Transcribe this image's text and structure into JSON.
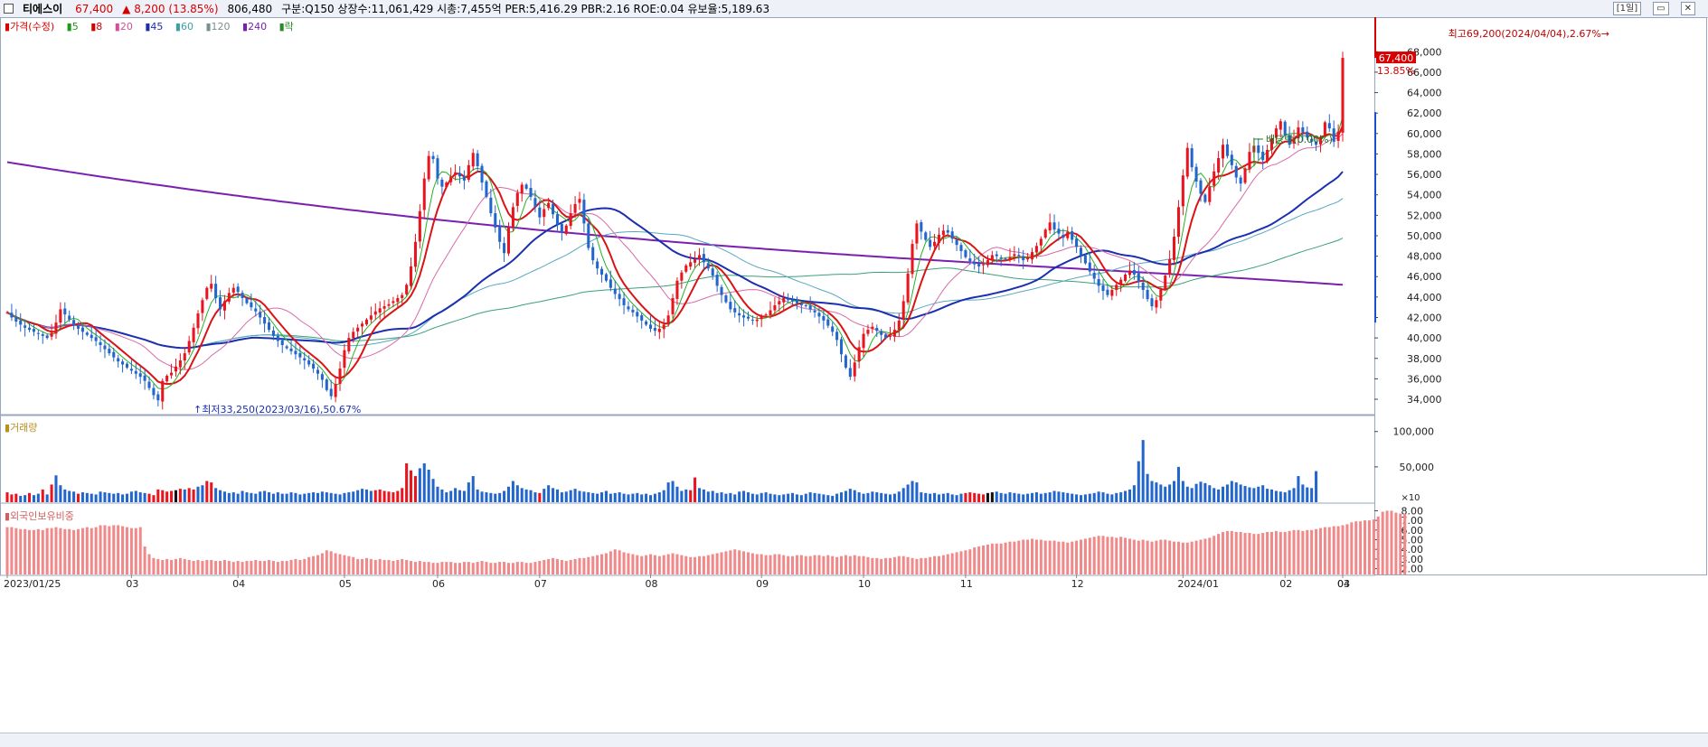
{
  "header": {
    "stock_name": "티에스이",
    "price": "67,400",
    "change": "▲ 8,200 (13.85%)",
    "volume": "806,480",
    "info": "구분:Q150  상장수:11,061,429  시총:7,455억  PER:5,416.29  PBR:2.16  ROE:0.04  유보율:5,189.63",
    "period_button": "[1일]",
    "win_min": "▭",
    "win_close": "✕"
  },
  "legend": {
    "price": "가격(수정)",
    "ma5": "5",
    "ma8": "8",
    "ma20": "20",
    "ma45": "45",
    "ma60": "60",
    "ma120": "120",
    "ma240": "240",
    "drop": "락",
    "volume": "거래량",
    "foreign": "외국인보유비중"
  },
  "colors": {
    "up": "#e8141e",
    "down": "#2266cc",
    "ma5": "#28b028",
    "ma8": "#d81414",
    "ma20": "#d86aa8",
    "ma45": "#1b2fb0",
    "ma60": "#58a8c0",
    "ma120": "#3aa07a",
    "ma240": "#7a20b0",
    "foreign": "#f08a8a"
  },
  "chart_data": {
    "type": "candlestick",
    "price_axis": {
      "ticks": [
        "34,000",
        "36,000",
        "38,000",
        "40,000",
        "42,000",
        "44,000",
        "46,000",
        "48,000",
        "50,000",
        "52,000",
        "54,000",
        "56,000",
        "58,000",
        "60,000",
        "62,000",
        "64,000",
        "66,000",
        "68,000"
      ],
      "ylim": [
        32500,
        70500
      ]
    },
    "current_price": "67,400",
    "current_change_pct": "13.85%",
    "annotations": {
      "high": "최고69,200(2024/04/04),2.67%",
      "low": "최저33,250(2023/03/16),50.67%",
      "dividend": "배당락(0.00%)"
    },
    "x_labels": [
      "2023/01/25",
      "03",
      "04",
      "05",
      "06",
      "07",
      "08",
      "09",
      "10",
      "11",
      "12",
      "2024/01",
      "02",
      "03",
      "04"
    ],
    "closes": [
      42500,
      42000,
      41600,
      41300,
      41000,
      40800,
      40600,
      40400,
      40200,
      40000,
      40500,
      41500,
      42800,
      42300,
      41800,
      41200,
      40900,
      40600,
      40300,
      40000,
      39700,
      39300,
      38900,
      38500,
      38100,
      37700,
      37400,
      37100,
      36800,
      36500,
      36200,
      35800,
      35100,
      34400,
      33900,
      35800,
      36300,
      36600,
      37200,
      37800,
      38500,
      39700,
      41000,
      42400,
      43700,
      44900,
      45300,
      43900,
      42800,
      43600,
      44400,
      44900,
      44500,
      43900,
      43400,
      43000,
      42600,
      42000,
      41400,
      40800,
      40200,
      39700,
      39300,
      39000,
      38700,
      38400,
      38100,
      37800,
      37400,
      37000,
      36500,
      35900,
      34900,
      34300,
      35500,
      37000,
      38800,
      40000,
      40600,
      41000,
      41400,
      41800,
      42200,
      42600,
      42900,
      43100,
      43300,
      43600,
      43900,
      44200,
      45200,
      47000,
      49400,
      52400,
      55600,
      57800,
      57500,
      55600,
      54800,
      55200,
      55800,
      56200,
      55800,
      55400,
      56900,
      58100,
      56800,
      55200,
      53800,
      52200,
      50800,
      49400,
      48300,
      50800,
      52800,
      54200,
      55000,
      54600,
      53800,
      52800,
      51800,
      52600,
      53200,
      52100,
      51100,
      50300,
      51000,
      52200,
      53100,
      53600,
      51200,
      48800,
      47600,
      46800,
      46200,
      45600,
      44900,
      44300,
      43800,
      43200,
      42800,
      42500,
      42100,
      41700,
      41300,
      40900,
      40700,
      40900,
      41300,
      42200,
      43900,
      45600,
      46400,
      47100,
      47400,
      47700,
      48100,
      47400,
      46800,
      46100,
      45100,
      44200,
      43500,
      42800,
      42500,
      42200,
      42000,
      41900,
      41700,
      41800,
      42100,
      42300,
      42700,
      43200,
      43600,
      43900,
      43700,
      43600,
      43400,
      43200,
      43100,
      42800,
      42500,
      42100,
      41700,
      41200,
      40600,
      39800,
      38400,
      37100,
      36200,
      37600,
      39100,
      40400,
      40800,
      41100,
      40700,
      40300,
      40000,
      40200,
      40800,
      41700,
      43600,
      46300,
      49200,
      51200,
      50400,
      49600,
      48900,
      49400,
      50100,
      50500,
      50300,
      49700,
      49100,
      48500,
      47900,
      47500,
      47200,
      47000,
      47200,
      47600,
      48100,
      48000,
      47800,
      47700,
      47900,
      48200,
      48000,
      47600,
      47800,
      48400,
      49000,
      49700,
      50600,
      51300,
      50600,
      50200,
      49800,
      50400,
      49600,
      48900,
      48100,
      47300,
      46500,
      45800,
      45100,
      44600,
      44200,
      44700,
      45200,
      45700,
      46200,
      46600,
      46200,
      45500,
      44700,
      43800,
      43100,
      43700,
      44700,
      46100,
      47700,
      49900,
      52800,
      55900,
      58600,
      56700,
      55300,
      54100,
      53300,
      54800,
      56300,
      57600,
      58900,
      57800,
      56900,
      55700,
      55100,
      56600,
      58200,
      58800,
      58100,
      57400,
      58400,
      59500,
      60500,
      61200,
      59800,
      58900,
      59600,
      60600,
      60100,
      59600,
      59200,
      58900,
      59600,
      61100,
      60500,
      59200,
      60200,
      67400
    ],
    "volume_axis": {
      "ticks": [
        "50,000",
        "100,000"
      ],
      "unit": "×10"
    },
    "volumes": [
      14,
      11,
      12,
      9,
      10,
      13,
      10,
      12,
      18,
      11,
      25,
      38,
      24,
      18,
      16,
      15,
      12,
      14,
      13,
      12,
      11,
      15,
      14,
      13,
      12,
      13,
      11,
      12,
      15,
      16,
      14,
      13,
      12,
      10,
      18,
      17,
      15,
      16,
      17,
      19,
      18,
      20,
      18,
      22,
      24,
      30,
      28,
      20,
      17,
      15,
      13,
      14,
      12,
      16,
      14,
      13,
      12,
      15,
      16,
      14,
      12,
      14,
      12,
      12,
      14,
      13,
      11,
      12,
      13,
      14,
      13,
      15,
      14,
      13,
      12,
      11,
      13,
      14,
      15,
      17,
      19,
      18,
      16,
      17,
      18,
      16,
      15,
      14,
      16,
      20,
      55,
      45,
      37,
      48,
      55,
      46,
      33,
      22,
      18,
      14,
      16,
      20,
      17,
      16,
      28,
      37,
      18,
      15,
      14,
      13,
      12,
      13,
      16,
      22,
      30,
      24,
      20,
      18,
      17,
      14,
      13,
      19,
      24,
      20,
      18,
      14,
      15,
      17,
      19,
      16,
      15,
      14,
      13,
      12,
      14,
      16,
      12,
      13,
      14,
      12,
      11,
      12,
      13,
      11,
      12,
      10,
      12,
      14,
      17,
      28,
      30,
      22,
      16,
      18,
      17,
      35,
      20,
      18,
      15,
      16,
      13,
      14,
      12,
      13,
      11,
      15,
      16,
      14,
      12,
      11,
      13,
      14,
      12,
      11,
      10,
      11,
      12,
      13,
      11,
      10,
      12,
      14,
      13,
      12,
      11,
      10,
      9,
      12,
      14,
      16,
      19,
      17,
      14,
      12,
      13,
      15,
      14,
      13,
      12,
      11,
      12,
      15,
      20,
      25,
      30,
      28,
      14,
      13,
      12,
      13,
      11,
      12,
      13,
      11,
      10,
      12,
      13,
      14,
      13,
      12,
      11,
      13,
      14,
      15,
      13,
      12,
      14,
      13,
      12,
      11,
      12,
      13,
      14,
      12,
      13,
      14,
      16,
      15,
      14,
      13,
      12,
      11,
      10,
      11,
      12,
      13,
      15,
      14,
      12,
      11,
      13,
      14,
      16,
      18,
      24,
      58,
      88,
      40,
      30,
      28,
      25,
      22,
      25,
      30,
      50,
      30,
      22,
      20,
      26,
      29,
      27,
      24,
      20,
      18,
      22,
      25,
      30,
      28,
      25,
      23,
      21,
      20,
      22,
      24,
      19,
      18,
      16,
      15,
      14,
      17,
      20,
      37,
      25,
      21,
      20,
      44
    ],
    "volume_colors": "rrrbbrbbrbrbbbbbrbbbbbbbbbbbbbbbrrrrrrkrbrrbbrrbbbbbbbbbbbbbbbbbbbbbbbbbbbbbbbbbbbbrrrrrrrrrrbbbbbbbbbbbbbbbbbbbbbbbbbbbrbbbbbbbbbbbbbbbbbbbbbbbbbbbbbbbbbrrbbbbbbbbbbbbbbbbbbbbbbbbbbbbbbbbbbbbbbbbbbbbbbbbbbbbbbbbbbbbrrrrrkkbbbbbbbbbbbbbbbbbbbbbbbbbbbbbbbbbbbbbbbbbbbbbbbbbbbbbbbbbbbbbbbbbbbbbbbbbbbbbbbbbbbbbbbbbbbbbbrrrrrbbbbbbbbbbbbbbbbbbbbbbbbbbbbbrrrrrrrr",
    "foreign_axis": {
      "ticks": [
        "2.00",
        "3.00",
        "4.00",
        "5.00",
        "6.00",
        "7.00",
        "8.00"
      ],
      "ylim": [
        1.4,
        8.6
      ]
    },
    "foreign_ratio": [
      6.3,
      6.3,
      6.2,
      6.1,
      6.1,
      6.0,
      6.0,
      6.1,
      6.0,
      6.2,
      6.2,
      6.3,
      6.2,
      6.1,
      6.1,
      6.0,
      6.1,
      6.2,
      6.3,
      6.2,
      6.3,
      6.5,
      6.5,
      6.4,
      6.5,
      6.5,
      6.4,
      6.3,
      6.2,
      6.2,
      6.3,
      4.3,
      3.5,
      3.1,
      3.0,
      2.9,
      3.0,
      2.9,
      3.0,
      3.1,
      3.0,
      2.9,
      2.8,
      2.9,
      2.8,
      2.9,
      2.9,
      2.8,
      2.8,
      2.9,
      2.8,
      2.7,
      2.8,
      2.7,
      2.8,
      2.8,
      2.9,
      2.8,
      2.8,
      2.9,
      2.8,
      2.7,
      2.8,
      2.8,
      2.9,
      3.0,
      2.9,
      3.0,
      3.2,
      3.3,
      3.4,
      3.6,
      3.9,
      3.8,
      3.6,
      3.5,
      3.4,
      3.3,
      3.2,
      3.0,
      3.0,
      3.1,
      3.0,
      2.9,
      3.0,
      2.9,
      2.9,
      2.8,
      2.9,
      3.0,
      2.9,
      2.8,
      2.7,
      2.8,
      2.7,
      2.7,
      2.6,
      2.6,
      2.7,
      2.7,
      2.7,
      2.6,
      2.6,
      2.7,
      2.7,
      2.6,
      2.7,
      2.8,
      2.7,
      2.6,
      2.6,
      2.7,
      2.7,
      2.6,
      2.6,
      2.7,
      2.7,
      2.6,
      2.6,
      2.7,
      2.8,
      2.9,
      3.0,
      3.1,
      3.0,
      2.9,
      2.8,
      2.9,
      3.0,
      3.1,
      3.1,
      3.2,
      3.3,
      3.4,
      3.5,
      3.6,
      3.8,
      4.0,
      3.9,
      3.7,
      3.6,
      3.5,
      3.4,
      3.3,
      3.4,
      3.5,
      3.4,
      3.3,
      3.4,
      3.5,
      3.6,
      3.5,
      3.4,
      3.3,
      3.2,
      3.2,
      3.3,
      3.3,
      3.4,
      3.5,
      3.6,
      3.7,
      3.8,
      3.9,
      4.0,
      3.9,
      3.8,
      3.7,
      3.6,
      3.5,
      3.5,
      3.4,
      3.4,
      3.5,
      3.5,
      3.4,
      3.3,
      3.3,
      3.4,
      3.4,
      3.3,
      3.3,
      3.4,
      3.4,
      3.3,
      3.4,
      3.3,
      3.2,
      3.3,
      3.4,
      3.3,
      3.4,
      3.3,
      3.3,
      3.2,
      3.1,
      3.1,
      3.0,
      3.1,
      3.1,
      3.2,
      3.3,
      3.3,
      3.2,
      3.1,
      3.0,
      3.1,
      3.1,
      3.2,
      3.3,
      3.3,
      3.4,
      3.5,
      3.6,
      3.7,
      3.8,
      3.9,
      4.0,
      4.2,
      4.3,
      4.4,
      4.5,
      4.6,
      4.6,
      4.6,
      4.7,
      4.8,
      4.8,
      4.9,
      5.0,
      5.0,
      5.1,
      5.0,
      5.0,
      4.9,
      4.9,
      4.9,
      4.8,
      4.8,
      4.7,
      4.8,
      4.9,
      5.0,
      5.1,
      5.2,
      5.3,
      5.4,
      5.4,
      5.3,
      5.3,
      5.2,
      5.3,
      5.2,
      5.1,
      5.0,
      4.9,
      5.0,
      4.9,
      4.8,
      4.9,
      5.0,
      5.0,
      4.9,
      4.8,
      4.8,
      4.7,
      4.7,
      4.8,
      4.9,
      5.0,
      5.1,
      5.2,
      5.4,
      5.6,
      5.8,
      5.9,
      5.9,
      5.8,
      5.8,
      5.7,
      5.7,
      5.6,
      5.6,
      5.7,
      5.8,
      5.8,
      5.9,
      5.8,
      5.8,
      5.9,
      6.0,
      6.0,
      5.9,
      6.0,
      6.0,
      6.1,
      6.2,
      6.3,
      6.3,
      6.4,
      6.4,
      6.5,
      6.6,
      6.8,
      6.9,
      6.9,
      7.0,
      7.0,
      7.1,
      7.4,
      7.9,
      8.0,
      8.0,
      7.8,
      7.7,
      7.7
    ]
  }
}
